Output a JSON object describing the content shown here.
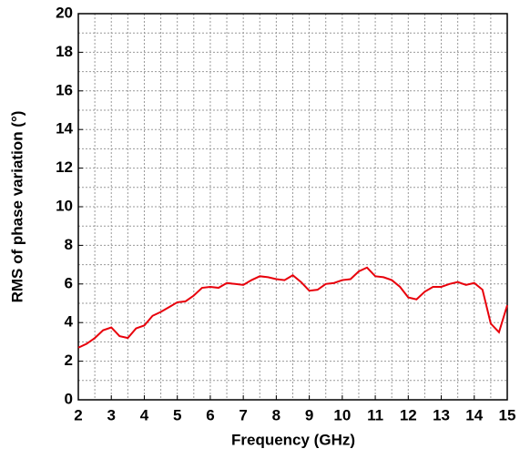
{
  "chart_data": {
    "type": "line",
    "xlabel": "Frequency (GHz)",
    "ylabel": "RMS of phase variation (°)",
    "x": [
      2.0,
      2.25,
      2.5,
      2.75,
      3.0,
      3.25,
      3.5,
      3.75,
      4.0,
      4.25,
      4.5,
      4.75,
      5.0,
      5.25,
      5.5,
      5.75,
      6.0,
      6.25,
      6.5,
      6.75,
      7.0,
      7.25,
      7.5,
      7.75,
      8.0,
      8.25,
      8.5,
      8.75,
      9.0,
      9.25,
      9.5,
      9.75,
      10.0,
      10.25,
      10.5,
      10.75,
      11.0,
      11.25,
      11.5,
      11.75,
      12.0,
      12.25,
      12.5,
      12.75,
      13.0,
      13.25,
      13.5,
      13.75,
      14.0,
      14.25,
      14.5,
      14.75,
      15.0
    ],
    "series": [
      {
        "color": "#e8000b",
        "values": [
          2.7,
          2.9,
          3.2,
          3.6,
          3.75,
          3.3,
          3.2,
          3.7,
          3.85,
          4.35,
          4.55,
          4.8,
          5.05,
          5.1,
          5.4,
          5.8,
          5.85,
          5.8,
          6.05,
          6.0,
          5.95,
          6.2,
          6.4,
          6.35,
          6.25,
          6.2,
          6.45,
          6.1,
          5.65,
          5.7,
          6.0,
          6.05,
          6.2,
          6.25,
          6.65,
          6.85,
          6.4,
          6.35,
          6.2,
          5.85,
          5.3,
          5.2,
          5.6,
          5.85,
          5.85,
          6.0,
          6.1,
          5.95,
          6.05,
          5.7,
          3.95,
          3.5,
          4.9
        ]
      }
    ],
    "xlim": [
      2,
      15
    ],
    "xticks": [
      2,
      3,
      4,
      5,
      6,
      7,
      8,
      9,
      10,
      11,
      12,
      13,
      14,
      15
    ],
    "ylim": [
      0,
      20
    ],
    "yticks": [
      0,
      2,
      4,
      6,
      8,
      10,
      12,
      14,
      16,
      18,
      20
    ],
    "grid": true,
    "minor_grid": true
  }
}
